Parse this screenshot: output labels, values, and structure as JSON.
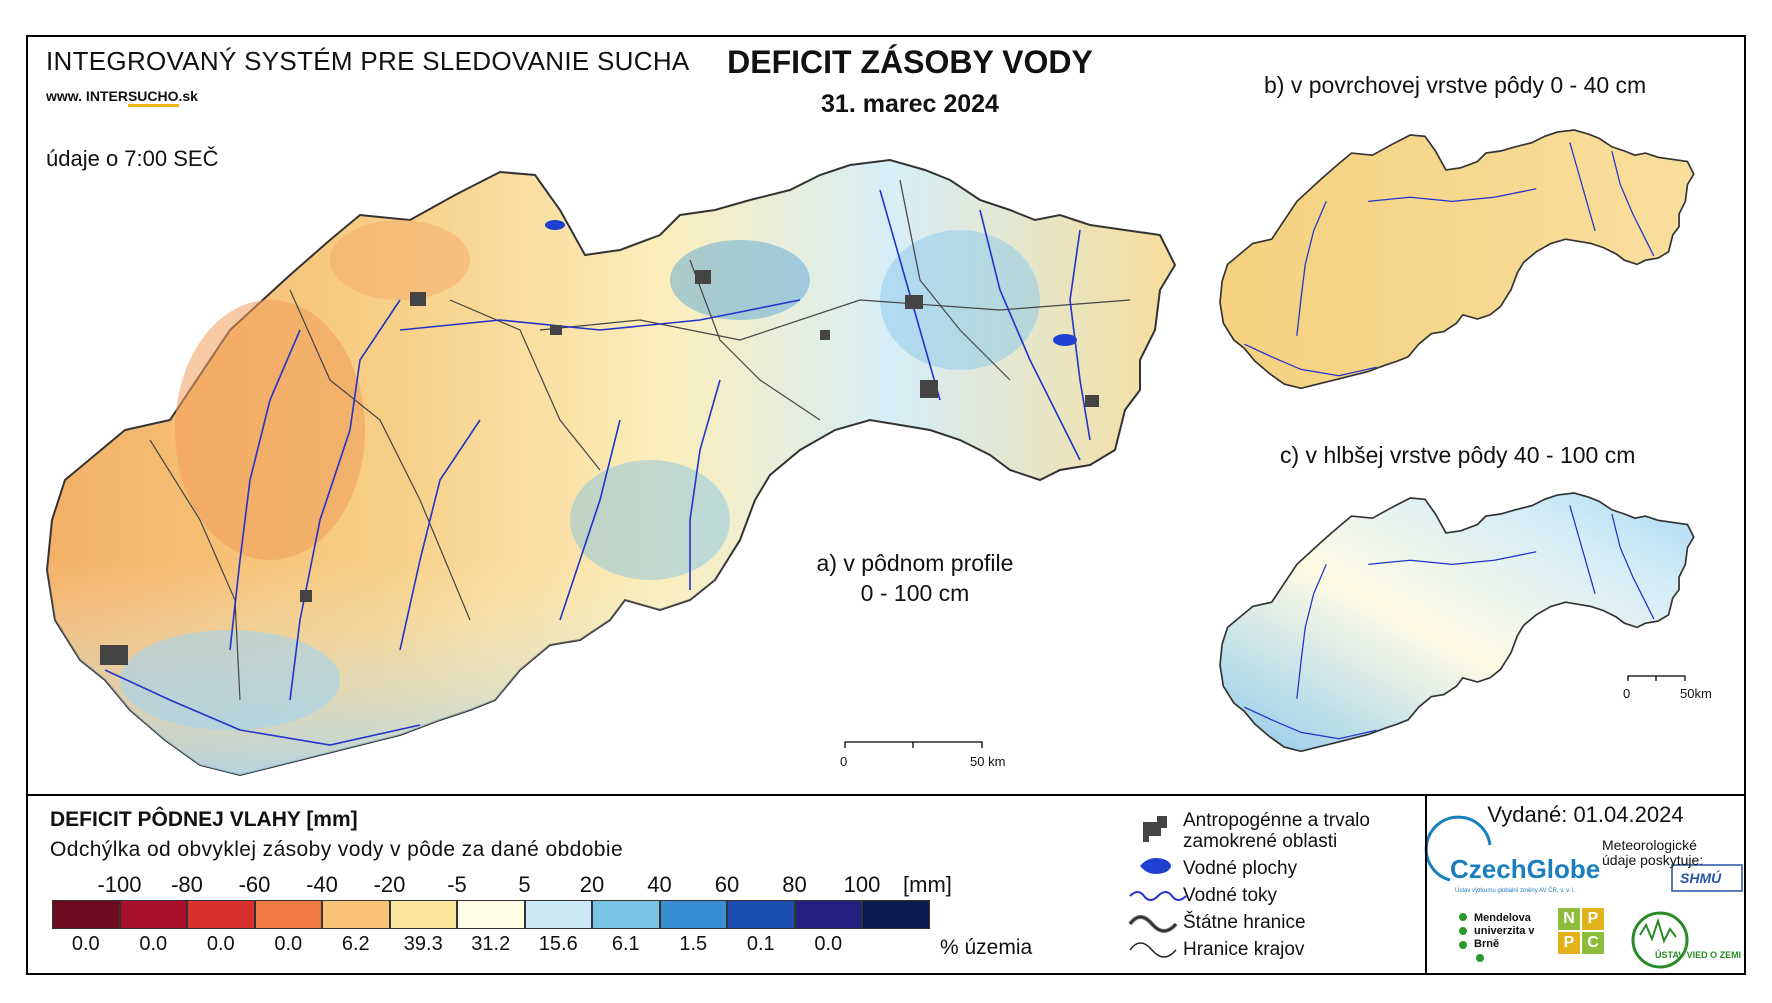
{
  "header": {
    "system_name": "INTEGROVANÝ SYSTÉM PRE SLEDOVANIE SUCHA",
    "website_prefix": "www. INTER",
    "website_underlined": "SUCHO",
    "website_suffix": ".sk",
    "data_time": "údaje o 7:00 SEČ"
  },
  "title": "DEFICIT ZÁSOBY VODY",
  "date": "31. marec 2024",
  "panels": {
    "a_line1": "a) v pôdnom profile",
    "a_line2": "0 - 100 cm",
    "b": "b) v povrchovej vrstve pôdy 0 - 40 cm",
    "c": "c) v hlbšej vrstve pôdy 40 - 100 cm"
  },
  "scale_bar": {
    "start": "0",
    "end": "50 km",
    "end_small": "50km"
  },
  "legend": {
    "title": "DEFICIT PÔDNEJ VLAHY [mm]",
    "subtitle": "Odchýlka od obvyklej zásoby vody v pôde za dané obdobie",
    "unit": "[mm]",
    "percent_label": "% územia",
    "ticks": [
      "-100",
      "-80",
      "-60",
      "-40",
      "-20",
      "-5",
      "5",
      "20",
      "40",
      "60",
      "80",
      "100"
    ],
    "classes": [
      {
        "color": "#6b0b1f",
        "percent": "0.0"
      },
      {
        "color": "#a8102a",
        "percent": "0.0"
      },
      {
        "color": "#d8312e",
        "percent": "0.0"
      },
      {
        "color": "#f07a45",
        "percent": "0.0"
      },
      {
        "color": "#f8c278",
        "percent": "6.2"
      },
      {
        "color": "#fae59d",
        "percent": "39.3"
      },
      {
        "color": "#fffde6",
        "percent": "31.2"
      },
      {
        "color": "#cbe8f4",
        "percent": "15.6"
      },
      {
        "color": "#79c3e6",
        "percent": "6.1"
      },
      {
        "color": "#3a8fd2",
        "percent": "1.5"
      },
      {
        "color": "#1d4fb0",
        "percent": "0.1"
      },
      {
        "color": "#23207f",
        "percent": "0.0"
      },
      {
        "color": "#0b1a4f",
        "percent": ""
      }
    ]
  },
  "symbols": [
    {
      "icon": "urban-area-icon",
      "label": "Antropogénne a trvalo zamokrené oblasti"
    },
    {
      "icon": "water-body-icon",
      "label": "Vodné plochy"
    },
    {
      "icon": "river-icon",
      "label": "Vodné toky"
    },
    {
      "icon": "state-border-icon",
      "label": "Štátne hranice"
    },
    {
      "icon": "region-border-icon",
      "label": "Hranice krajov"
    }
  ],
  "issued": "Vydané: 01.04.2024",
  "logos": {
    "czechglobe": "CzechGlobe",
    "czechglobe_sub": "Ústav výzkumu globální změny AV ČR, v. v. i.",
    "meteo": "Meteorologické údaje poskytuje:",
    "shmu": "SHMÚ",
    "mendel": "Mendelova univerzita v Brně",
    "nppc": [
      "N",
      "P",
      "P",
      "C"
    ],
    "uvz": "ÚSTAV VIED O ZEMI"
  },
  "colors": {
    "river": "#2233cc",
    "urban": "#444444",
    "border": "#333333"
  }
}
